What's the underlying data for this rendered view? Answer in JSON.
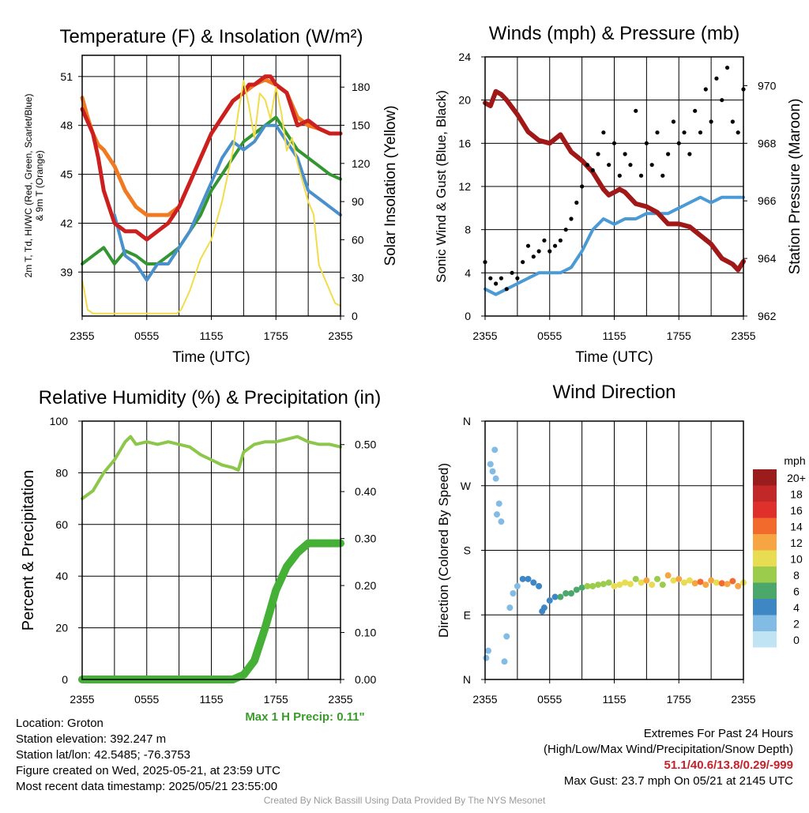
{
  "footer": {
    "location": "Location: Groton",
    "elevation": "Station elevation: 392.247 m",
    "latlon": "Station lat/lon: 42.5485; -76.3753",
    "created": "Figure created on Wed, 2025-05-21, at 23:59 UTC",
    "recent": "Most recent data timestamp: 2025/05/21 23:55:00",
    "extremes_title": "Extremes For Past 24 Hours",
    "extremes_sub": "(High/Low/Max Wind/Precipitation/Snow Depth)",
    "extremes_values": "51.1/40.6/13.8/0.29/-999",
    "max_gust": "Max Gust: 23.7 mph On 05/21 at 2145 UTC",
    "credit": "Created By Nick Bassill Using Data Provided By The NYS Mesonet"
  },
  "colors": {
    "temp": "#cc2020",
    "heat_index": "#339630",
    "wind_chill": "#4a90cc",
    "t9m": "#f07a22",
    "solar": "#f2dc4a",
    "wind": "#4a9ad6",
    "gust": "#000000",
    "pressure": "#a01818",
    "rh": "#8cc64a",
    "precip": "#44b036",
    "max_precip_text": "#3a9a2a"
  },
  "chart_data": [
    {
      "id": "temp",
      "type": "line",
      "title": "Temperature (F) & Insolation (W/m²)",
      "xlabel": "Time (UTC)",
      "ylabel": [
        "2m T, Td, HI/WC (Red, Green, Scarlet/Blue)",
        "& 9m T (Orange)"
      ],
      "y2label": "Solar Insolation (Yellow)",
      "xticks": [
        "2355",
        "0555",
        "1155",
        "1755",
        "2355"
      ],
      "ylim": [
        36.3,
        52.3
      ],
      "yticks": [
        39,
        42,
        45,
        48,
        51
      ],
      "y2lim": [
        0,
        205
      ],
      "y2ticks": [
        0,
        30,
        60,
        90,
        120,
        150,
        180
      ],
      "series": [
        {
          "key": "temp",
          "x": [
            0,
            1,
            1.5,
            2,
            2.5,
            3,
            4,
            5,
            6,
            7,
            8,
            9,
            10,
            11,
            12,
            13,
            14,
            15,
            15.5,
            16,
            17,
            17.5,
            18,
            19,
            19.5,
            20,
            21,
            22,
            23,
            24
          ],
          "y": [
            49,
            47.5,
            46,
            44,
            43,
            42,
            41.5,
            41.5,
            41,
            41.5,
            42,
            43,
            44.5,
            46,
            47.5,
            48.5,
            49.5,
            50,
            50.5,
            50.5,
            51,
            51,
            50.5,
            50,
            49,
            48,
            48.3,
            47.8,
            47.5,
            47.5
          ]
        },
        {
          "key": "t9m",
          "x": [
            0,
            0.5,
            1,
            1.5,
            2,
            3,
            4,
            5,
            6,
            7,
            8,
            9,
            10,
            11,
            12,
            13,
            14,
            15,
            16,
            17,
            18,
            19,
            20,
            21,
            22,
            23,
            24
          ],
          "y": [
            49.7,
            48.5,
            47.5,
            46.8,
            46.5,
            45.5,
            44,
            43,
            42.5,
            42.5,
            42.5,
            43,
            44.5,
            46,
            47.5,
            48.5,
            49.5,
            50,
            50.5,
            50.8,
            50.5,
            50,
            48.5,
            48,
            47.8,
            47.5,
            47.5
          ]
        },
        {
          "key": "heat_index",
          "x": [
            0,
            1,
            2,
            3,
            4,
            5,
            6,
            7,
            8,
            9,
            10,
            11,
            12,
            13,
            14,
            15,
            16,
            17,
            18,
            19,
            20,
            21,
            22,
            23,
            24
          ],
          "y": [
            39.5,
            40,
            40.5,
            39.5,
            40.3,
            40,
            39.5,
            39.5,
            40,
            40.5,
            41.5,
            42.5,
            44,
            45,
            46,
            47,
            47.5,
            48,
            48.5,
            47.5,
            46.5,
            46,
            45.5,
            45,
            44.7
          ]
        },
        {
          "key": "wind_chill",
          "x": [
            3,
            4,
            5,
            6,
            7,
            8,
            9,
            10,
            11,
            12,
            13,
            14,
            15,
            16,
            17,
            18,
            19,
            20,
            21,
            22,
            23,
            24
          ],
          "y": [
            42.5,
            40,
            39.5,
            38.5,
            39.5,
            39.5,
            40.5,
            41.5,
            43,
            44.5,
            46,
            47,
            46.5,
            47,
            48,
            48,
            47,
            46,
            44,
            43.5,
            43,
            42.5
          ]
        },
        {
          "key": "solar",
          "axis": "y2",
          "x": [
            0,
            0.2,
            0.5,
            1,
            3,
            5,
            7,
            8.8,
            9.2,
            10,
            11,
            12,
            12.5,
            13,
            13.5,
            14,
            14.5,
            15,
            15.5,
            16,
            16.5,
            17,
            17.5,
            18,
            18.5,
            19,
            19.5,
            20,
            21,
            21.5,
            22,
            22.5,
            23,
            23.5,
            24
          ],
          "y": [
            28,
            20,
            5,
            2,
            2,
            2,
            2,
            2,
            5,
            20,
            45,
            60,
            75,
            90,
            110,
            130,
            160,
            185,
            165,
            140,
            175,
            170,
            155,
            180,
            160,
            130,
            140,
            120,
            90,
            80,
            40,
            30,
            20,
            10,
            8
          ]
        }
      ]
    },
    {
      "id": "winds",
      "type": "line",
      "title": "Winds (mph) & Pressure (mb)",
      "xlabel": "Time (UTC)",
      "ylabel": "Sonic Wind & Gust (Blue, Black)",
      "y2label": "Station Pressure (Maroon)",
      "xticks": [
        "2355",
        "0555",
        "1155",
        "1755",
        "2355"
      ],
      "ylim": [
        0,
        24
      ],
      "yticks": [
        0,
        4,
        8,
        12,
        16,
        20,
        24
      ],
      "y2lim": [
        962,
        971
      ],
      "y2ticks": [
        962,
        964,
        966,
        968,
        970
      ],
      "series": [
        {
          "key": "wind",
          "x": [
            0,
            1,
            2,
            3,
            4,
            5,
            6,
            7,
            8,
            9,
            10,
            11,
            12,
            13,
            14,
            15,
            16,
            17,
            18,
            19,
            20,
            21,
            22,
            23,
            24
          ],
          "y": [
            2.5,
            2,
            2.5,
            3,
            3.5,
            4,
            4,
            4,
            4.5,
            6,
            8,
            9,
            8.5,
            9,
            9,
            9.5,
            9.5,
            9.5,
            10,
            10.5,
            11,
            10.5,
            11,
            11,
            11
          ]
        },
        {
          "key": "gust",
          "type": "scatter",
          "x": [
            0,
            0.5,
            1,
            1.5,
            2,
            2.5,
            3,
            3.5,
            4,
            4.5,
            5,
            5.5,
            6,
            6.5,
            7,
            7.5,
            8,
            8.5,
            9,
            9.5,
            10,
            10.5,
            11,
            11.5,
            12,
            12.5,
            13,
            13.5,
            14,
            14.5,
            15,
            15.5,
            16,
            16.5,
            17,
            17.5,
            18,
            18.5,
            19,
            19.5,
            20,
            20.5,
            21,
            21.5,
            22,
            22.5,
            23,
            23.5,
            24
          ],
          "y": [
            5,
            3.5,
            3,
            3.5,
            2.5,
            4,
            3.5,
            5,
            6.5,
            5.5,
            6,
            7,
            6,
            6.5,
            7,
            8,
            9,
            10.5,
            12,
            14,
            13.5,
            15,
            17,
            14,
            16,
            13,
            15,
            14,
            19,
            13,
            16,
            14,
            17,
            13,
            15,
            18,
            16,
            17,
            15,
            19,
            17,
            21,
            18,
            22,
            20,
            23,
            18,
            17,
            21
          ]
        },
        {
          "key": "pressure",
          "axis": "y2",
          "x": [
            0,
            0.5,
            1,
            1.5,
            2,
            3,
            4,
            5,
            6,
            7,
            8,
            9,
            10,
            11,
            11.5,
            12,
            12.5,
            13,
            14,
            15,
            16,
            17,
            18,
            19,
            20,
            21,
            22,
            23,
            23.5,
            24
          ],
          "y": [
            969.4,
            969.3,
            969.8,
            969.7,
            969.5,
            969.0,
            968.4,
            968.1,
            968.0,
            968.3,
            967.7,
            967.4,
            967.0,
            966.4,
            966.2,
            966.3,
            966.4,
            966.3,
            965.9,
            965.8,
            965.6,
            965.2,
            965.2,
            965.1,
            964.8,
            964.5,
            964.0,
            963.8,
            963.6,
            963.9
          ]
        }
      ]
    },
    {
      "id": "rh",
      "type": "line",
      "title": "Relative Humidity (%) & Precipitation (in)",
      "ylabel": "Percent & Precipitation",
      "xticks": [
        "2355",
        "0555",
        "1155",
        "1755",
        "2355"
      ],
      "ylim": [
        0,
        100
      ],
      "yticks": [
        0,
        20,
        40,
        60,
        80,
        100
      ],
      "y2lim": [
        0,
        0.55
      ],
      "y2ticks": [
        "0.00",
        "0.10",
        "0.20",
        "0.30",
        "0.40",
        "0.50"
      ],
      "annotation": "Max 1 H Precip: 0.11\"",
      "series": [
        {
          "key": "rh",
          "x": [
            0,
            1,
            2,
            3,
            4,
            4.5,
            5,
            6,
            7,
            8,
            9,
            10,
            11,
            12,
            13,
            14,
            14.5,
            15,
            16,
            17,
            18,
            19,
            20,
            21,
            22,
            23,
            24
          ],
          "y": [
            70,
            73,
            80,
            85,
            92,
            94,
            91,
            92,
            91,
            92,
            91,
            90,
            87,
            85,
            83,
            82,
            81,
            88,
            91,
            92,
            92,
            93,
            94,
            92,
            91,
            91,
            90
          ]
        },
        {
          "key": "precip",
          "axis": "y2",
          "x": [
            0,
            6,
            12,
            14,
            15,
            16,
            17,
            18,
            19,
            20,
            21,
            22,
            23,
            24
          ],
          "y": [
            0,
            0,
            0,
            0,
            0.01,
            0.04,
            0.11,
            0.19,
            0.24,
            0.27,
            0.29,
            0.29,
            0.29,
            0.29
          ]
        }
      ]
    },
    {
      "id": "wdir",
      "type": "scatter",
      "title": "Wind Direction",
      "ylabel": "Direction (Colored By Speed)",
      "xticks": [
        "2355",
        "0555",
        "1155",
        "1755",
        "2355"
      ],
      "yticks": [
        "N",
        "E",
        "S",
        "W",
        "N"
      ],
      "ylim": [
        0,
        360
      ],
      "legend_title": "mph",
      "legend_labels": [
        "20+",
        "18",
        "16",
        "14",
        "12",
        "10",
        "8",
        "6",
        "4",
        "2",
        "0"
      ],
      "legend_colors": [
        "#9b1c1c",
        "#c22828",
        "#e0302c",
        "#f26a2c",
        "#f7a442",
        "#e8dc52",
        "#9ccc4c",
        "#4ca86a",
        "#3f86c4",
        "#82bce4",
        "#c0e4f4"
      ],
      "series": [
        {
          "name": "",
          "x": [
            0.1,
            0.3,
            0.5,
            0.7,
            0.9,
            1.0,
            1.1,
            1.3,
            1.5,
            1.8,
            2.0,
            2.3,
            2.6,
            3.0,
            3.5,
            4.0,
            4.5,
            5.0,
            5.3,
            5.5,
            6.0,
            6.5,
            7.0,
            7.5,
            8.0,
            8.5,
            9.0,
            9.5,
            10,
            10.5,
            11,
            11.5,
            12,
            12.5,
            13,
            13.5,
            14,
            14.5,
            15,
            15.5,
            16,
            16.5,
            17,
            17.5,
            18,
            18.5,
            19,
            19.5,
            20,
            20.5,
            21,
            21.5,
            22,
            22.5,
            23,
            23.5,
            24
          ],
          "y": [
            30,
            40,
            300,
            290,
            320,
            280,
            230,
            245,
            220,
            25,
            60,
            100,
            120,
            130,
            140,
            140,
            135,
            130,
            95,
            100,
            110,
            115,
            115,
            120,
            120,
            125,
            128,
            130,
            130,
            132,
            133,
            135,
            130,
            132,
            135,
            133,
            140,
            135,
            138,
            132,
            140,
            132,
            145,
            138,
            140,
            135,
            138,
            134,
            136,
            132,
            138,
            135,
            134,
            133,
            137,
            130,
            135
          ],
          "speed": [
            2,
            1,
            2,
            2,
            2,
            1,
            2,
            2,
            1,
            1,
            1,
            2,
            2,
            2,
            3,
            4,
            4,
            3,
            4,
            4,
            4,
            4,
            5,
            5,
            6,
            5,
            6,
            7,
            7,
            8,
            7,
            8,
            9,
            10,
            10,
            9,
            8,
            9,
            11,
            9,
            8,
            8,
            12,
            10,
            11,
            9,
            10,
            12,
            13,
            11,
            12,
            10,
            14,
            12,
            13,
            11,
            10
          ]
        }
      ]
    }
  ]
}
